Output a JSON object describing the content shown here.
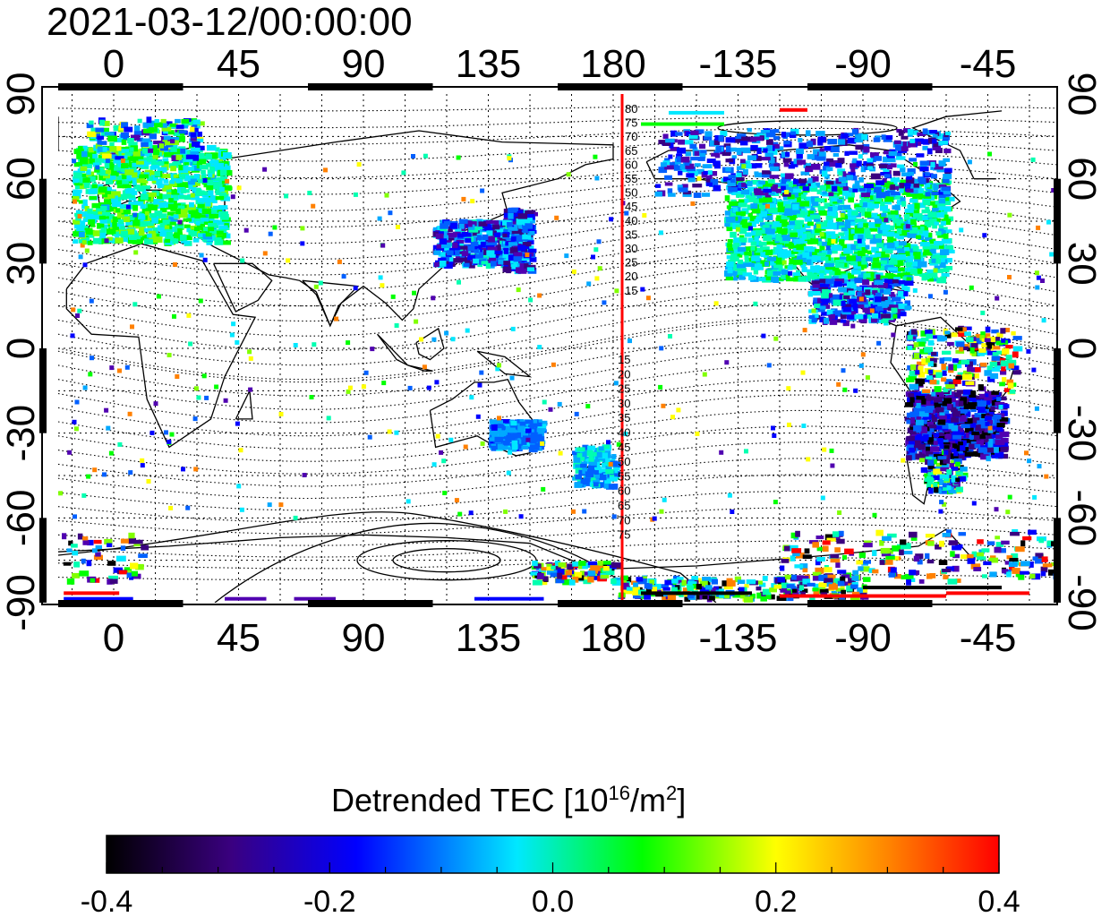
{
  "title": "2021-03-12/00:00:00",
  "map": {
    "lon_ticks_top": [
      "0",
      "45",
      "90",
      "135",
      "180",
      "-135",
      "-90",
      "-45"
    ],
    "lon_ticks_bottom": [
      "0",
      "45",
      "90",
      "135",
      "180",
      "-135",
      "-90",
      "-45"
    ],
    "lat_ticks_left": [
      "90",
      "60",
      "30",
      "0",
      "-30",
      "-60",
      "-90"
    ],
    "lat_ticks_right": [
      "90",
      "60",
      "30",
      "0",
      "-30",
      "-60",
      "-90"
    ],
    "meridian_labels_north": [
      "80",
      "75",
      "70",
      "65",
      "60",
      "55",
      "50",
      "45",
      "40",
      "35",
      "30",
      "25",
      "20",
      "15"
    ],
    "meridian_labels_south": [
      "15",
      "20",
      "25",
      "30",
      "35",
      "40",
      "45",
      "50",
      "55",
      "60",
      "65",
      "70",
      "75"
    ],
    "colors": {
      "date_line": "#ff0000",
      "coast": "#000000",
      "grid": "#000000"
    }
  },
  "colorbar": {
    "label_main": "Detrended TEC  [10",
    "label_sup1": "16",
    "label_mid": "/m",
    "label_sup2": "2",
    "label_end": "]",
    "tick_labels": [
      "-0.4",
      "-0.2",
      "0.0",
      "0.2",
      "0.4"
    ],
    "stops": [
      "#000000",
      "#3a0080",
      "#0000ff",
      "#00e8ff",
      "#00ff00",
      "#ffff00",
      "#ff8000",
      "#ff0000"
    ]
  }
}
